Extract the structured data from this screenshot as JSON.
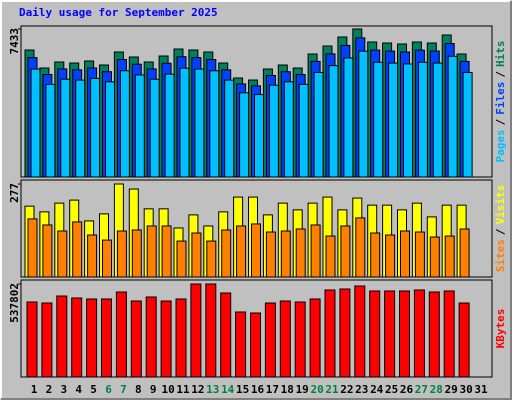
{
  "title": "Daily usage for September 2025",
  "chart_data": [
    {
      "type": "bar",
      "ylim": [
        0,
        7433
      ],
      "yticks": [
        7433
      ],
      "legend_separator": "/",
      "series": [
        {
          "name": "Pages",
          "color": "#00c0ff",
          "values": [
            5421,
            4653,
            4910,
            4866,
            4952,
            4781,
            5336,
            5123,
            4910,
            5165,
            5464,
            5421,
            5336,
            4866,
            4226,
            4140,
            4610,
            4781,
            4653,
            5250,
            5592,
            5976,
            6318,
            5763,
            5721,
            5678,
            5763,
            5721,
            6061,
            5250,
            null
          ]
        },
        {
          "name": "Files",
          "color": "#0040ff",
          "values": [
            5995,
            5146,
            5429,
            5382,
            5476,
            5288,
            5901,
            5665,
            5429,
            5712,
            6042,
            5995,
            5901,
            5382,
            4674,
            4579,
            5099,
            5288,
            5146,
            5806,
            6184,
            6609,
            6987,
            6373,
            6326,
            6279,
            6373,
            6326,
            6703,
            5806,
            null
          ]
        },
        {
          "name": "Hits",
          "color": "#00805c",
          "values": [
            6378,
            5474,
            5776,
            5725,
            5826,
            5625,
            6278,
            6027,
            5776,
            6077,
            6428,
            6378,
            6278,
            5725,
            4972,
            4871,
            5424,
            5625,
            5474,
            6177,
            6579,
            7031,
            7433,
            6780,
            6730,
            6680,
            6780,
            6730,
            7131,
            6177,
            null
          ]
        }
      ]
    },
    {
      "type": "bar",
      "ylim": [
        0,
        277
      ],
      "yticks": [
        277
      ],
      "legend_separator": "/",
      "series": [
        {
          "name": "Sites",
          "color": "#ff8000",
          "values": [
            173,
            155,
            137,
            164,
            125,
            110,
            137,
            140,
            152,
            152,
            107,
            131,
            107,
            140,
            152,
            158,
            134,
            137,
            143,
            155,
            122,
            152,
            176,
            131,
            125,
            137,
            134,
            119,
            122,
            143,
            null
          ]
        },
        {
          "name": "Visits",
          "color": "#ffff00",
          "values": [
            211,
            194,
            220,
            229,
            167,
            188,
            277,
            262,
            203,
            203,
            146,
            185,
            152,
            194,
            238,
            238,
            185,
            220,
            200,
            220,
            238,
            200,
            235,
            214,
            214,
            200,
            220,
            179,
            214,
            214,
            null
          ]
        }
      ]
    },
    {
      "type": "bar",
      "ylim": [
        0,
        537802
      ],
      "yticks": [
        537802
      ],
      "categories": [
        "1",
        "2",
        "3",
        "4",
        "5",
        "6",
        "7",
        "8",
        "9",
        "10",
        "11",
        "12",
        "13",
        "14",
        "15",
        "16",
        "17",
        "18",
        "19",
        "20",
        "21",
        "22",
        "23",
        "24",
        "25",
        "26",
        "27",
        "28",
        "29",
        "30",
        "31"
      ],
      "category_colors": [
        "#000000",
        "#000000",
        "#000000",
        "#000000",
        "#000000",
        "#008040",
        "#008040",
        "#000000",
        "#000000",
        "#000000",
        "#000000",
        "#000000",
        "#008040",
        "#008040",
        "#000000",
        "#000000",
        "#000000",
        "#000000",
        "#000000",
        "#008040",
        "#008040",
        "#000000",
        "#000000",
        "#000000",
        "#000000",
        "#000000",
        "#008040",
        "#008040",
        "#000000",
        "#000000",
        "#000000"
      ],
      "series": [
        {
          "name": "KBytes",
          "color": "#ff0000",
          "values": [
            433725,
            427942,
            468423,
            456857,
            451074,
            451074,
            491555,
            439508,
            462640,
            439508,
            451074,
            537802,
            537802,
            485772,
            375895,
            370112,
            427942,
            439508,
            433725,
            451074,
            503121,
            508904,
            526236,
            497338,
            497338,
            497338,
            503121,
            491555,
            497338,
            427942,
            null
          ]
        }
      ]
    }
  ]
}
